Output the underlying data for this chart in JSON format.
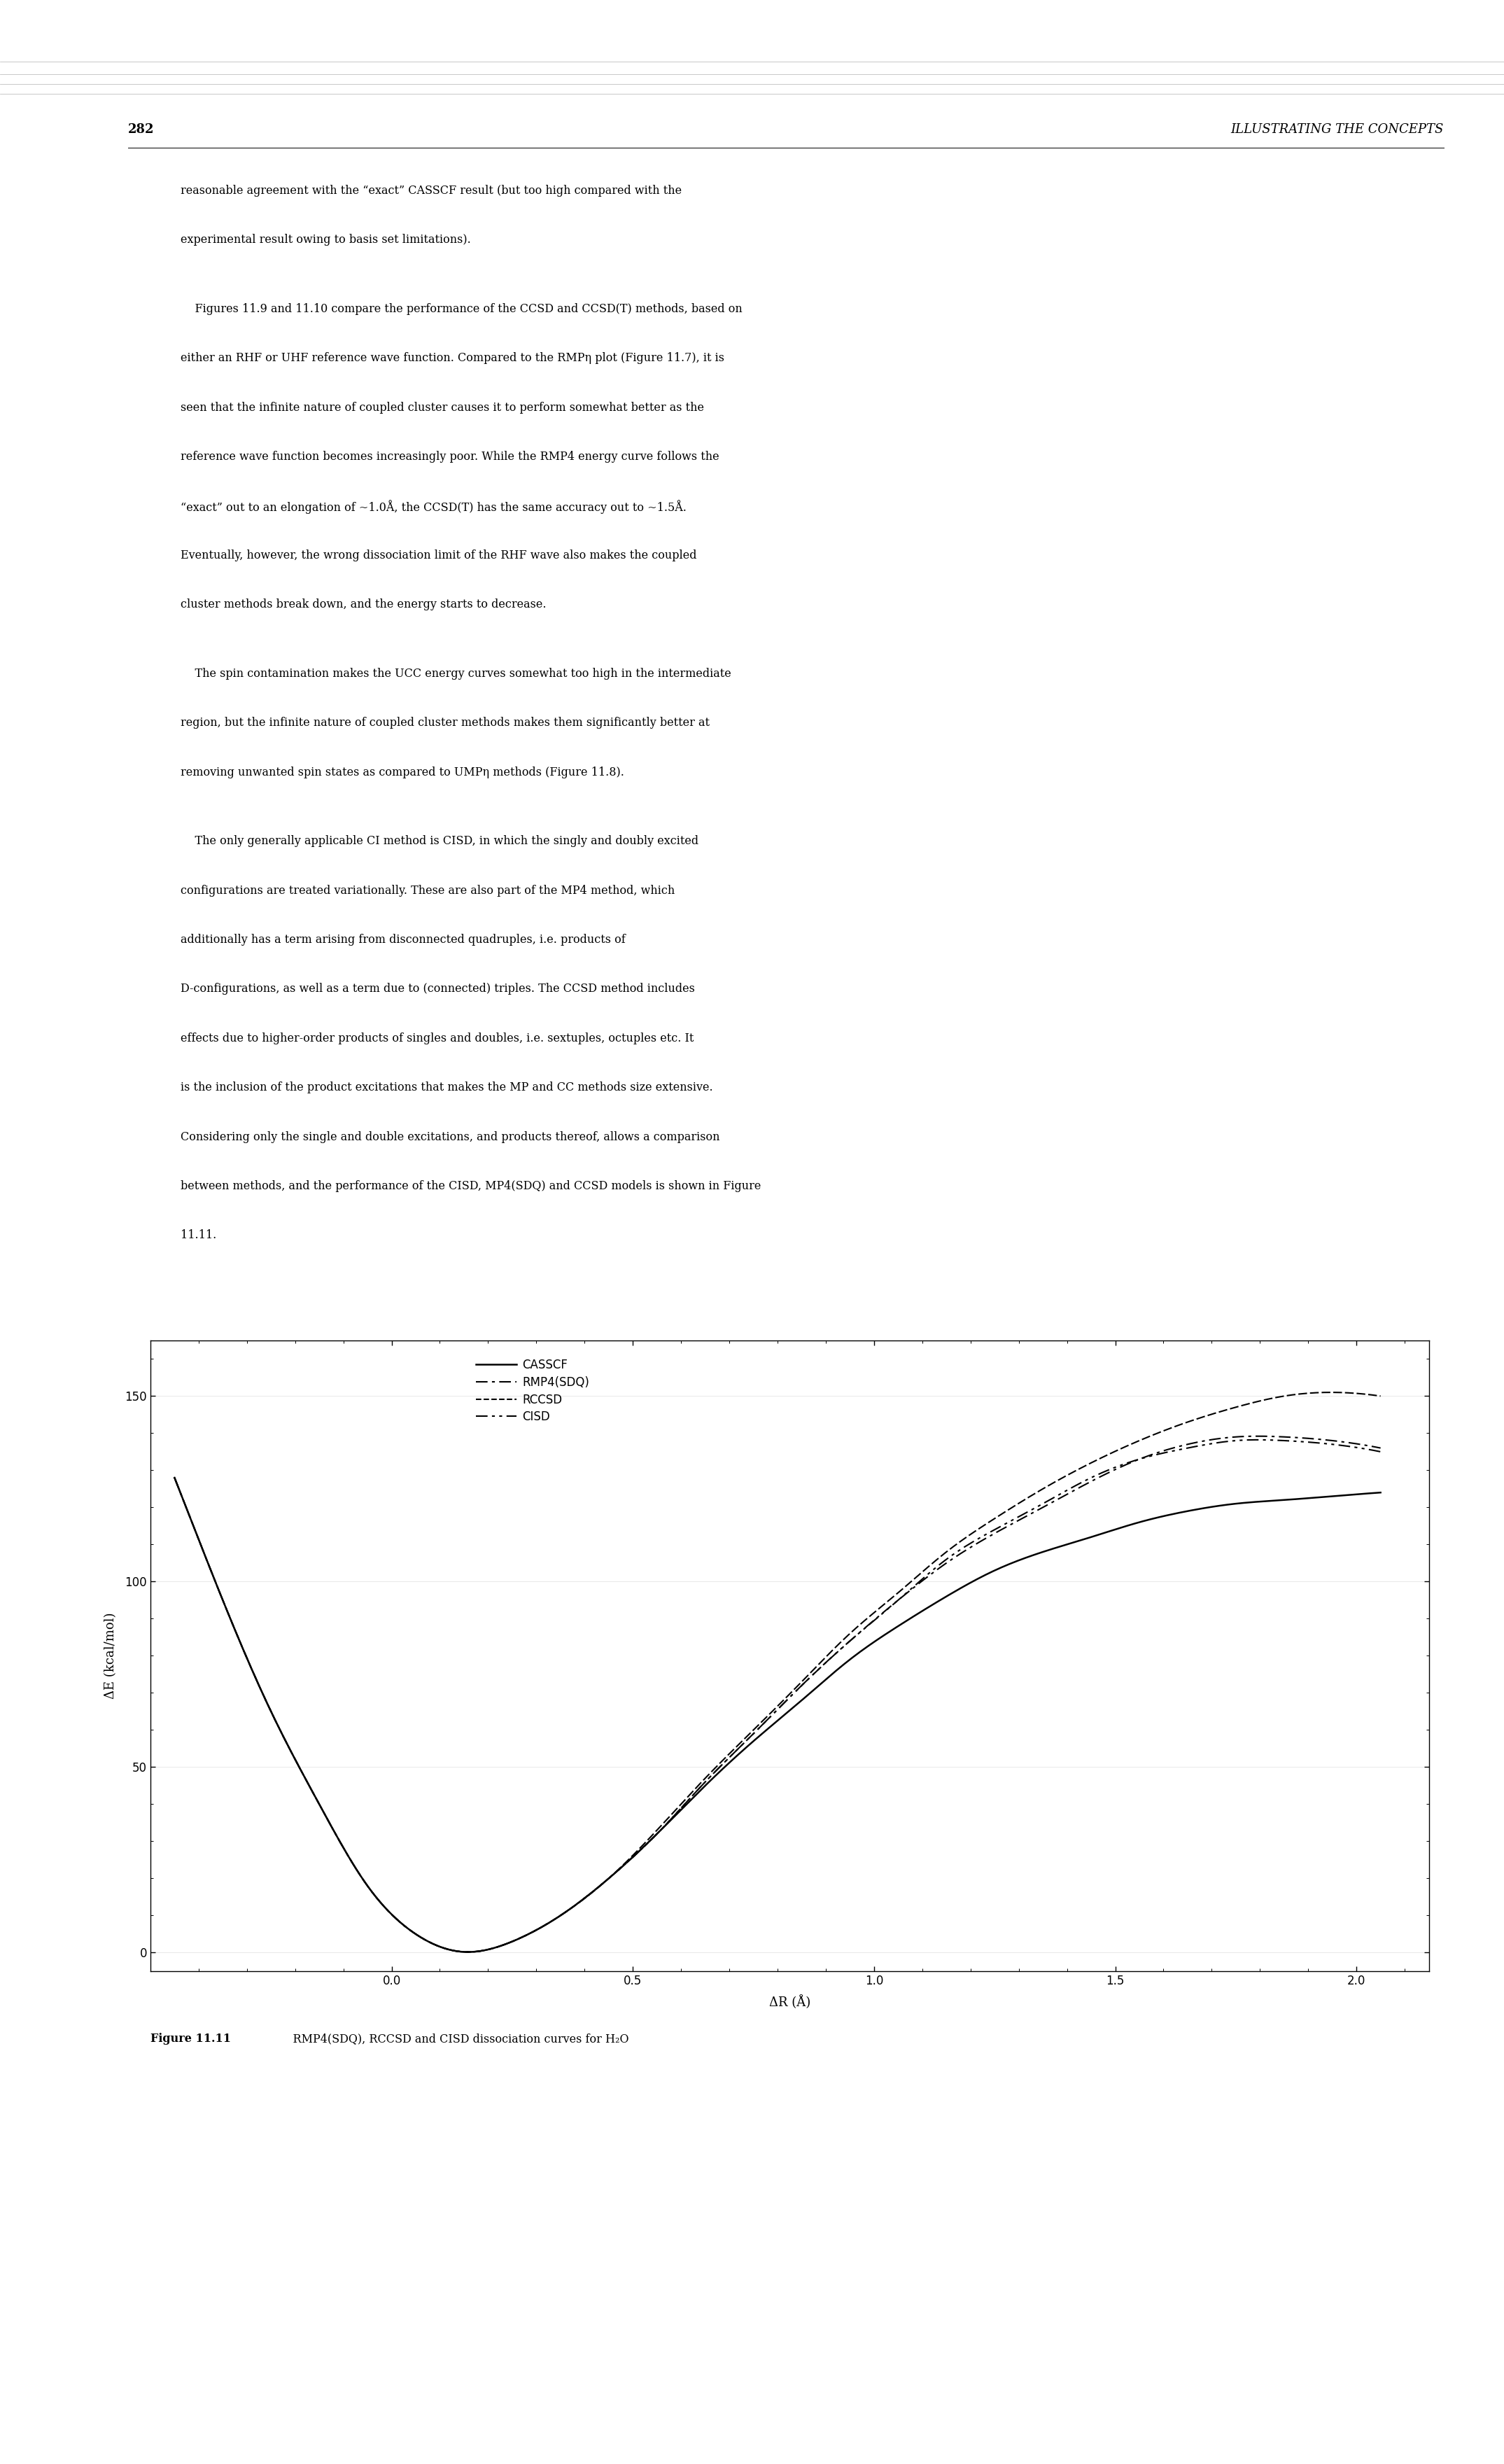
{
  "page_number": "282",
  "header_right": "ILLUSTRATING THE CONCEPTS",
  "paragraph1": "reasonable agreement with the “exact” CASSCF result (but too high compared with the experimental result owing to basis set limitations).",
  "paragraph2": "Figures 11.9 and 11.10 compare the performance of the CCSD and CCSD(T) methods, based on either an RHF or UHF reference wave function. Compared to the RMPη plot (Figure 11.7), it is seen that the infinite nature of coupled cluster causes it to perform somewhat better as the reference wave function becomes increasingly poor. While the RMP4 energy curve follows the “exact” out to an elongation of ~1.0Å, the CCSD(T) has the same accuracy out to ~1.5Å. Eventually, however, the wrong dissociation limit of the RHF wave also makes the coupled cluster methods break down, and the energy starts to decrease.",
  "paragraph3": "The spin contamination makes the UCC energy curves somewhat too high in the intermediate region, but the infinite nature of coupled cluster methods makes them significantly better at removing unwanted spin states as compared to UMPη methods (Figure 11.8).",
  "paragraph4": "The only generally applicable CI method is CISD, in which the singly and doubly excited configurations are treated variationally. These are also part of the MP4 method, which additionally has a term arising from disconnected quadruples, i.e. products of D-configurations, as well as a term due to (connected) triples. The CCSD method includes effects due to higher-order products of singles and doubles, i.e. sextuples, octuples etc. It is the inclusion of the product excitations that makes the MP and CC methods size extensive. Considering only the single and double excitations, and products thereof, allows a comparison between methods, and the performance of the CISD, MP4(SDQ) and CCSD models is shown in Figure 11.11.",
  "figure_caption": "Figure 11.11    RMP4(SDQ), RCCSD and CISD dissociation curves for H₂O",
  "xlabel": "ΔR (Å)",
  "ylabel": "ΔE (kcal/mol)",
  "xlim": [
    -0.5,
    2.15
  ],
  "ylim": [
    -5,
    165
  ],
  "yticks": [
    0,
    50,
    100,
    150
  ],
  "xticks": [
    0.0,
    0.5,
    1.0,
    1.5,
    2.0
  ],
  "legend_entries": [
    "CASSCF",
    "RMP4(SDQ)",
    "RCCSD",
    "CISD"
  ],
  "legend_styles": [
    "solid",
    "dash_dot",
    "dashed4",
    "dash_dot2"
  ],
  "bg_color": "#ffffff",
  "text_color": "#000000",
  "curve_color": "#000000",
  "casscf_x": [
    -0.45,
    -0.35,
    -0.25,
    -0.15,
    -0.05,
    0.05,
    0.15,
    0.25,
    0.35,
    0.45,
    0.55,
    0.65,
    0.75,
    0.85,
    0.95,
    1.05,
    1.15,
    1.25,
    1.35,
    1.45,
    1.55,
    1.65,
    1.75,
    1.85,
    1.95,
    2.05
  ],
  "casscf_y": [
    128,
    95,
    65,
    40,
    18,
    5,
    0.2,
    3,
    10,
    20,
    32,
    45,
    57,
    68,
    79,
    88,
    96,
    103,
    108,
    112,
    116,
    119,
    121,
    122,
    123,
    124
  ],
  "rmp4sdq_x": [
    -0.45,
    -0.35,
    -0.25,
    -0.15,
    -0.05,
    0.05,
    0.15,
    0.25,
    0.35,
    0.45,
    0.55,
    0.65,
    0.75,
    0.85,
    0.95,
    1.05,
    1.15,
    1.25,
    1.35,
    1.45,
    1.55,
    1.65,
    1.75,
    1.85,
    1.95,
    2.05
  ],
  "rmp4sdq_y": [
    128,
    95,
    65,
    40,
    18,
    5,
    0.2,
    3,
    10,
    20,
    32,
    46,
    59,
    72,
    84,
    95,
    105,
    113,
    120,
    127,
    133,
    137,
    139,
    139,
    138,
    136
  ],
  "rccsd_x": [
    -0.45,
    -0.35,
    -0.25,
    -0.15,
    -0.05,
    0.05,
    0.15,
    0.25,
    0.35,
    0.45,
    0.55,
    0.65,
    0.75,
    0.85,
    0.95,
    1.05,
    1.15,
    1.25,
    1.35,
    1.45,
    1.55,
    1.65,
    1.75,
    1.85,
    1.95,
    2.05
  ],
  "rccsd_y": [
    128,
    95,
    65,
    40,
    18,
    5,
    0.2,
    3,
    10,
    20,
    33,
    47,
    60,
    73,
    86,
    97,
    108,
    117,
    125,
    132,
    138,
    143,
    147,
    150,
    151,
    150
  ],
  "cisd_x": [
    -0.45,
    -0.35,
    -0.25,
    -0.15,
    -0.05,
    0.05,
    0.15,
    0.25,
    0.35,
    0.45,
    0.55,
    0.65,
    0.75,
    0.85,
    0.95,
    1.05,
    1.15,
    1.25,
    1.35,
    1.45,
    1.55,
    1.65,
    1.75,
    1.85,
    1.95,
    2.05
  ],
  "cisd_y": [
    128,
    95,
    65,
    40,
    18,
    5,
    0.2,
    3,
    10,
    20,
    32,
    46,
    59,
    72,
    84,
    95,
    106,
    114,
    121,
    128,
    133,
    136,
    138,
    138,
    137,
    135
  ]
}
